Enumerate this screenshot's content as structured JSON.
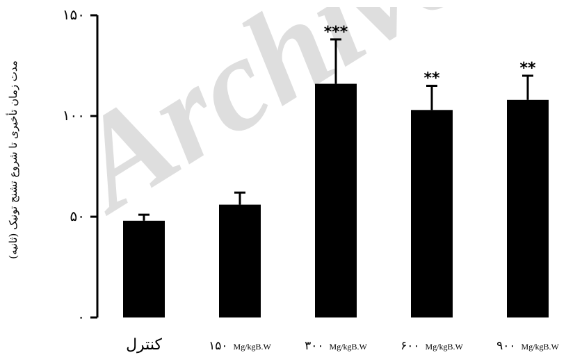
{
  "chart_data": {
    "type": "bar",
    "categories": [
      "کنترل",
      "۱۵۰",
      "۳۰۰",
      "۶۰۰",
      "۹۰۰"
    ],
    "category_units": [
      "",
      "Mg/kgB.W",
      "Mg/kgB.W",
      "Mg/kgB.W",
      "Mg/kgB.W"
    ],
    "values": [
      48,
      56,
      116,
      103,
      108
    ],
    "errors": [
      3,
      6,
      22,
      12,
      12
    ],
    "significance": [
      "",
      "",
      "***",
      "**",
      "**"
    ],
    "ylabel": "مدت زمان تأخیری تا شروع تشنج تونیک (ثانیه)",
    "ylim": [
      0,
      150
    ],
    "yticks": [
      0,
      50,
      100,
      150
    ],
    "ytick_labels": [
      "۰",
      "۵۰",
      "۱۰۰",
      "۱۵۰"
    ],
    "grid": false,
    "bar_color": "#000000"
  },
  "watermark": "Archive"
}
